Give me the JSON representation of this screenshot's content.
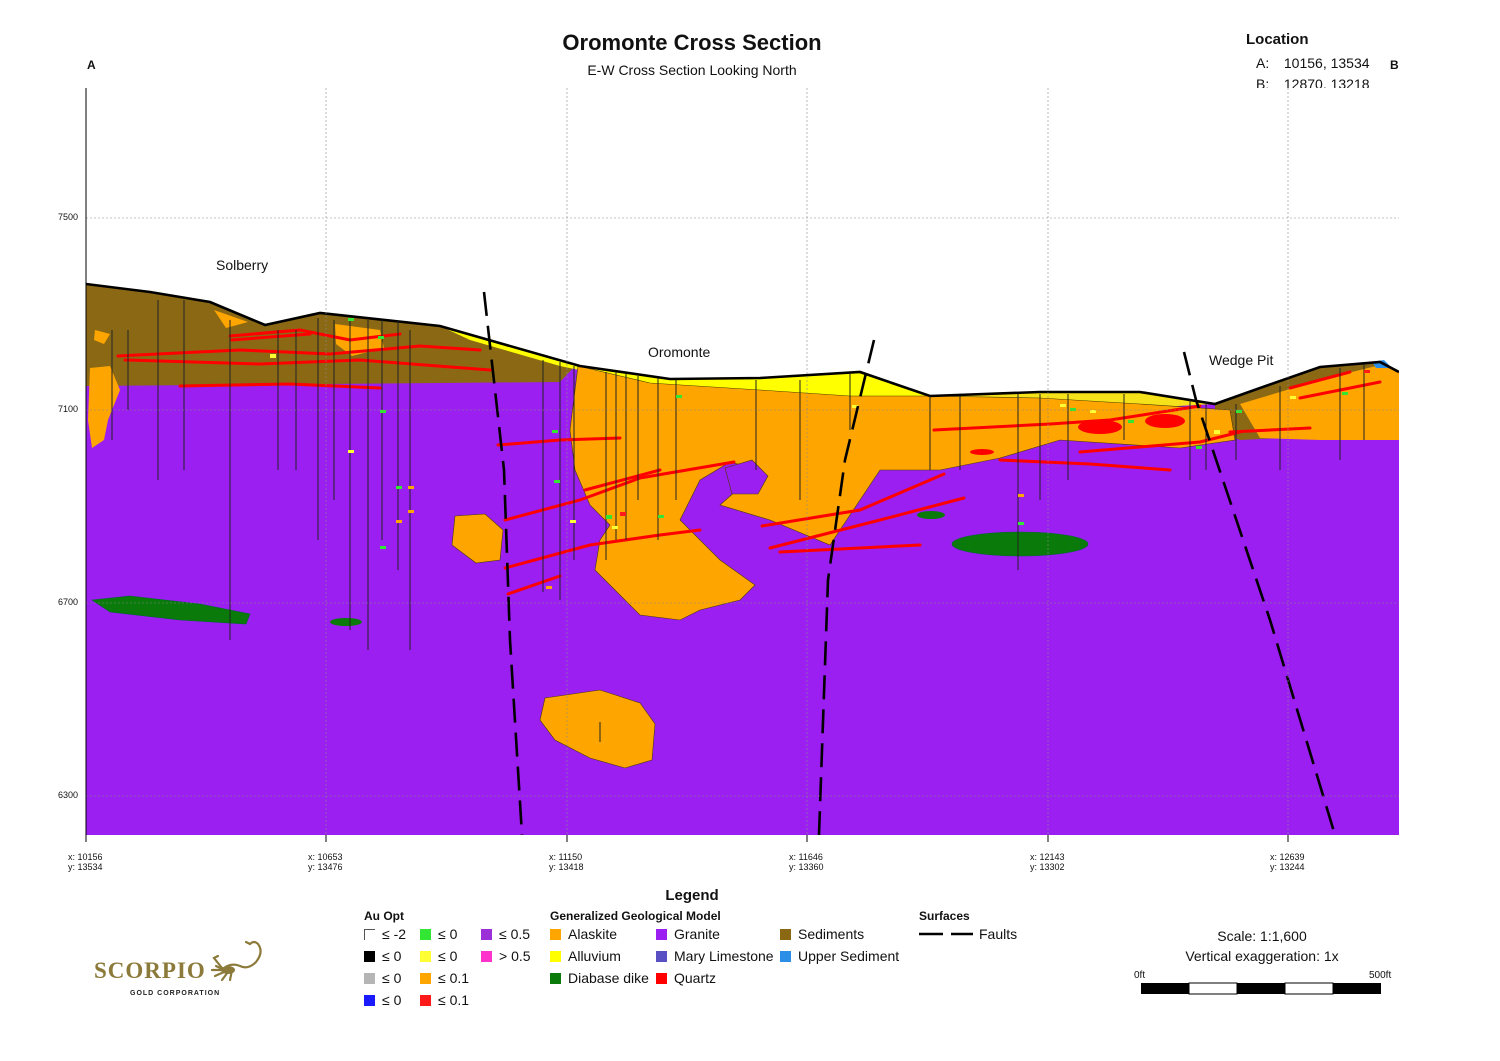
{
  "title": "Oromonte Cross Section",
  "subtitle": "E-W Cross Section Looking North",
  "section_ends": {
    "start": "A",
    "end": "B"
  },
  "location": {
    "title": "Location",
    "rows": [
      {
        "key": "A:",
        "value": "10156, 13534"
      },
      {
        "key": "B:",
        "value": "12870, 13218"
      }
    ]
  },
  "elevation_ticks": [
    "7500",
    "7100",
    "6700",
    "6300"
  ],
  "stations": [
    {
      "x": "x: 10156",
      "y": "y: 13534"
    },
    {
      "x": "x: 10653",
      "y": "y: 13476"
    },
    {
      "x": "x: 11150",
      "y": "y: 13418"
    },
    {
      "x": "x: 11646",
      "y": "y: 13360"
    },
    {
      "x": "x: 12143",
      "y": "y: 13302"
    },
    {
      "x": "x: 12639",
      "y": "y: 13244"
    }
  ],
  "place_labels": {
    "left": "Solberry",
    "center": "Oromonte",
    "right": "Wedge Pit"
  },
  "legend": {
    "title": "Legend",
    "au": {
      "heading": "Au Opt",
      "items": [
        {
          "label": "≤ -2",
          "color": "#ffffff",
          "icon": "open-corner"
        },
        {
          "label": "≤ 0",
          "color": "#000000"
        },
        {
          "label": "≤ 0",
          "color": "#b5b5b5"
        },
        {
          "label": "≤ 0",
          "color": "#1a1aff"
        },
        {
          "label": "≤ 0",
          "color": "#33e633"
        },
        {
          "label": "≤ 0",
          "color": "#ffff33"
        },
        {
          "label": "≤ 0.1",
          "color": "#ffa500"
        },
        {
          "label": "≤ 0.1",
          "color": "#ff1a1a"
        },
        {
          "label": "≤ 0.5",
          "color": "#9b30d9"
        },
        {
          "label": "> 0.5",
          "color": "#ff33cc"
        }
      ]
    },
    "geology": {
      "heading": "Generalized Geological Model",
      "items": [
        {
          "label": "Alaskite",
          "color": "#ffa500"
        },
        {
          "label": "Alluvium",
          "color": "#ffff00"
        },
        {
          "label": "Diabase dike",
          "color": "#0a7a0a"
        },
        {
          "label": "Granite",
          "color": "#9b1ff0"
        },
        {
          "label": "Mary Limestone",
          "color": "#5b4fc4"
        },
        {
          "label": "Quartz",
          "color": "#ff0000"
        },
        {
          "label": "Sediments",
          "color": "#8b6914"
        },
        {
          "label": "Upper Sediment",
          "color": "#2b8fe8"
        }
      ]
    },
    "surfaces": {
      "heading": "Surfaces",
      "items": [
        {
          "label": "Faults",
          "icon": "dashed-line"
        }
      ]
    }
  },
  "scale": {
    "scale_text": "Scale: 1:1,600",
    "vertical_exaggeration": "Vertical exaggeration: 1x",
    "bar_start": "0ft",
    "bar_end": "500ft"
  },
  "logo": {
    "name": "SCORPIO",
    "tagline": "GOLD CORPORATION"
  },
  "colors": {
    "granite": "#9b1ff0",
    "alaskite": "#ffa500",
    "sediments": "#8b6914",
    "alluvium": "#ffff00",
    "diabase": "#0a7a0a",
    "quartz": "#ff0000",
    "upper_sediment": "#2b8fe8"
  }
}
